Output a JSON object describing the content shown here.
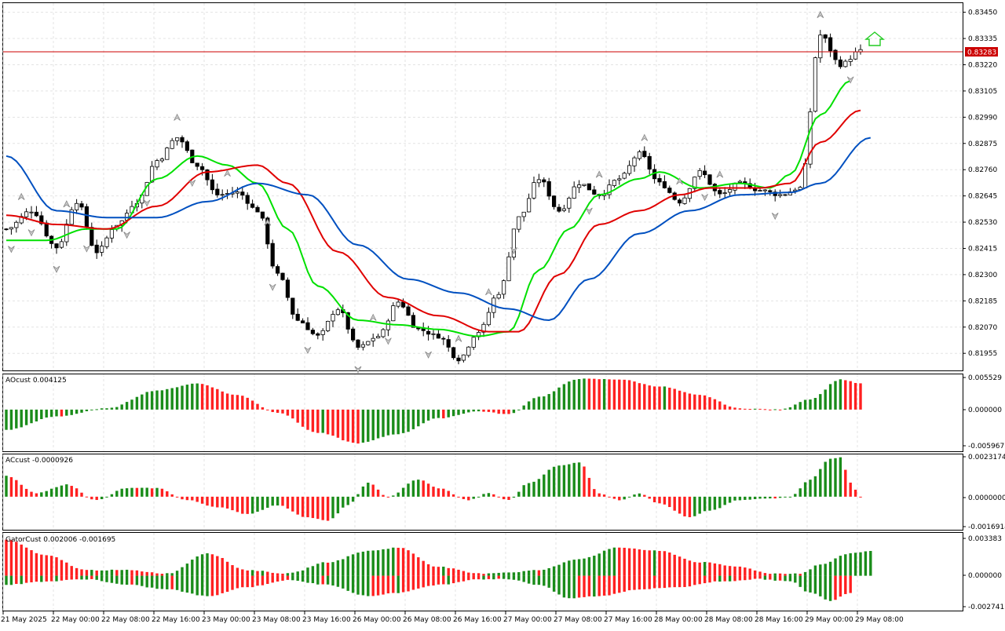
{
  "window": {
    "background": "#ffffff",
    "grid_color": "#e3e3e3",
    "border_color": "#000000"
  },
  "main_chart": {
    "type": "candlestick",
    "price_axis_labels": [
      "0.83450",
      "0.83335",
      "0.83220",
      "0.83105",
      "0.82990",
      "0.82875",
      "0.82760",
      "0.82645",
      "0.82530",
      "0.82415",
      "0.82300",
      "0.82185",
      "0.82070",
      "0.81955"
    ],
    "current_price": "0.83283",
    "current_price_line_color": "#cc0000",
    "y_range": [
      0.8188,
      0.8349
    ],
    "indicators": [
      {
        "name": "green line",
        "color": "#00e000"
      },
      {
        "name": "red line",
        "color": "#e00000"
      },
      {
        "name": "blue line",
        "color": "#0050c0"
      }
    ],
    "signal_arrow": {
      "direction": "up",
      "color": "#22cc22"
    }
  },
  "ao_panel": {
    "title": "AOcust 0.004125",
    "axis_labels": [
      "0.005529",
      "0.000000",
      "-0.005967"
    ],
    "up_color": "#1a8c1a",
    "down_color": "#ff2020"
  },
  "ac_panel": {
    "title": "ACcust -0.0000926",
    "axis_labels": [
      "0.0023174",
      "0.0000000",
      "-0.0016914"
    ]
  },
  "gator_panel": {
    "title": "GatorCust 0.002006 -0.001695",
    "axis_labels": [
      "0.003383",
      "0.000000",
      "-0.002741"
    ]
  },
  "time_axis": {
    "labels": [
      "21 May 2025",
      "22 May 00:00",
      "22 May 08:00",
      "22 May 16:00",
      "23 May 00:00",
      "23 May 08:00",
      "23 May 16:00",
      "26 May 00:00",
      "26 May 08:00",
      "26 May 16:00",
      "27 May 00:00",
      "27 May 08:00",
      "27 May 16:00",
      "28 May 00:00",
      "28 May 08:00",
      "28 May 16:00",
      "29 May 00:00",
      "29 May 08:00"
    ]
  },
  "chart_data": {
    "type": "candlestick",
    "price_range": [
      0.8188,
      0.8349
    ],
    "close_anchors": [
      [
        0,
        0.825
      ],
      [
        5,
        0.8258
      ],
      [
        10,
        0.8242
      ],
      [
        14,
        0.8262
      ],
      [
        18,
        0.824
      ],
      [
        22,
        0.8252
      ],
      [
        26,
        0.8262
      ],
      [
        30,
        0.828
      ],
      [
        34,
        0.829
      ],
      [
        38,
        0.8278
      ],
      [
        42,
        0.8265
      ],
      [
        46,
        0.8266
      ],
      [
        50,
        0.8258
      ],
      [
        54,
        0.823
      ],
      [
        58,
        0.821
      ],
      [
        62,
        0.8203
      ],
      [
        66,
        0.8215
      ],
      [
        70,
        0.8198
      ],
      [
        74,
        0.8203
      ],
      [
        78,
        0.8218
      ],
      [
        82,
        0.8206
      ],
      [
        86,
        0.8203
      ],
      [
        90,
        0.8193
      ],
      [
        94,
        0.8205
      ],
      [
        98,
        0.8222
      ],
      [
        102,
        0.8255
      ],
      [
        106,
        0.8272
      ],
      [
        110,
        0.8258
      ],
      [
        114,
        0.827
      ],
      [
        118,
        0.8265
      ],
      [
        122,
        0.8272
      ],
      [
        126,
        0.8283
      ],
      [
        130,
        0.827
      ],
      [
        134,
        0.8262
      ],
      [
        138,
        0.8275
      ],
      [
        142,
        0.8265
      ],
      [
        146,
        0.827
      ],
      [
        150,
        0.8267
      ],
      [
        154,
        0.8265
      ],
      [
        158,
        0.8268
      ],
      [
        162,
        0.8335
      ],
      [
        166,
        0.8322
      ],
      [
        170,
        0.8328
      ]
    ],
    "green_line": [
      [
        0,
        0.8245
      ],
      [
        8,
        0.8245
      ],
      [
        16,
        0.825
      ],
      [
        22,
        0.825
      ],
      [
        30,
        0.8272
      ],
      [
        38,
        0.8282
      ],
      [
        44,
        0.8278
      ],
      [
        50,
        0.827
      ],
      [
        56,
        0.825
      ],
      [
        62,
        0.8225
      ],
      [
        70,
        0.821
      ],
      [
        78,
        0.8208
      ],
      [
        86,
        0.8206
      ],
      [
        94,
        0.8203
      ],
      [
        100,
        0.8205
      ],
      [
        106,
        0.8232
      ],
      [
        112,
        0.825
      ],
      [
        118,
        0.8265
      ],
      [
        126,
        0.8272
      ],
      [
        130,
        0.8275
      ],
      [
        138,
        0.8268
      ],
      [
        146,
        0.827
      ],
      [
        152,
        0.8268
      ],
      [
        156,
        0.8274
      ],
      [
        162,
        0.83
      ],
      [
        168,
        0.8315
      ]
    ],
    "red_line": [
      [
        0,
        0.8256
      ],
      [
        10,
        0.8252
      ],
      [
        20,
        0.825
      ],
      [
        30,
        0.826
      ],
      [
        40,
        0.8275
      ],
      [
        50,
        0.8278
      ],
      [
        56,
        0.827
      ],
      [
        66,
        0.824
      ],
      [
        76,
        0.822
      ],
      [
        86,
        0.8212
      ],
      [
        96,
        0.8205
      ],
      [
        102,
        0.8205
      ],
      [
        110,
        0.823
      ],
      [
        118,
        0.8252
      ],
      [
        126,
        0.8258
      ],
      [
        134,
        0.8265
      ],
      [
        140,
        0.8268
      ],
      [
        150,
        0.8268
      ],
      [
        156,
        0.827
      ],
      [
        162,
        0.8288
      ],
      [
        170,
        0.8302
      ]
    ],
    "blue_line": [
      [
        0,
        0.8282
      ],
      [
        10,
        0.8258
      ],
      [
        20,
        0.8255
      ],
      [
        30,
        0.8255
      ],
      [
        40,
        0.8262
      ],
      [
        50,
        0.827
      ],
      [
        60,
        0.8265
      ],
      [
        70,
        0.8243
      ],
      [
        80,
        0.8228
      ],
      [
        90,
        0.8222
      ],
      [
        100,
        0.8215
      ],
      [
        108,
        0.821
      ],
      [
        116,
        0.8228
      ],
      [
        126,
        0.8248
      ],
      [
        136,
        0.8258
      ],
      [
        146,
        0.8265
      ],
      [
        156,
        0.8266
      ],
      [
        162,
        0.827
      ],
      [
        172,
        0.829
      ]
    ],
    "ao_anchors": [
      [
        0,
        -0.0035
      ],
      [
        10,
        -0.0012
      ],
      [
        20,
        0.0002
      ],
      [
        30,
        0.0033
      ],
      [
        38,
        0.0045
      ],
      [
        46,
        0.0025
      ],
      [
        54,
        -0.0005
      ],
      [
        62,
        -0.004
      ],
      [
        70,
        -0.0058
      ],
      [
        78,
        -0.0042
      ],
      [
        86,
        -0.0015
      ],
      [
        94,
        -0.0003
      ],
      [
        100,
        -0.0008
      ],
      [
        106,
        0.0022
      ],
      [
        114,
        0.0053
      ],
      [
        122,
        0.0052
      ],
      [
        130,
        0.004
      ],
      [
        138,
        0.0025
      ],
      [
        146,
        0.0002
      ],
      [
        154,
        0.0
      ],
      [
        160,
        0.0018
      ],
      [
        166,
        0.0052
      ],
      [
        170,
        0.0045
      ]
    ],
    "ac_anchors": [
      [
        0,
        0.0012
      ],
      [
        6,
        0.0002
      ],
      [
        12,
        0.0007
      ],
      [
        18,
        -0.0002
      ],
      [
        24,
        0.0005
      ],
      [
        30,
        0.0005
      ],
      [
        36,
        -0.0002
      ],
      [
        42,
        -0.0006
      ],
      [
        48,
        -0.001
      ],
      [
        54,
        -0.0005
      ],
      [
        60,
        -0.0012
      ],
      [
        64,
        -0.0014
      ],
      [
        68,
        -0.0005
      ],
      [
        72,
        0.0008
      ],
      [
        76,
        0.0
      ],
      [
        82,
        0.001
      ],
      [
        86,
        0.0005
      ],
      [
        92,
        -0.0002
      ],
      [
        96,
        0.0002
      ],
      [
        100,
        -0.0002
      ],
      [
        104,
        0.0008
      ],
      [
        110,
        0.0018
      ],
      [
        114,
        0.002
      ],
      [
        118,
        0.0002
      ],
      [
        122,
        -0.0002
      ],
      [
        126,
        0.0002
      ],
      [
        130,
        -0.0004
      ],
      [
        136,
        -0.0012
      ],
      [
        140,
        -0.0008
      ],
      [
        146,
        -0.0002
      ],
      [
        152,
        -0.0001
      ],
      [
        156,
        0.0
      ],
      [
        160,
        0.001
      ],
      [
        164,
        0.0022
      ],
      [
        166,
        0.0023
      ],
      [
        168,
        0.0008
      ],
      [
        170,
        0.0
      ]
    ],
    "gator_upper": [
      [
        0,
        0.0032
      ],
      [
        8,
        0.0018
      ],
      [
        16,
        0.0005
      ],
      [
        24,
        0.0005
      ],
      [
        32,
        0.0002
      ],
      [
        40,
        0.002
      ],
      [
        48,
        0.0005
      ],
      [
        56,
        0.0002
      ],
      [
        64,
        0.0012
      ],
      [
        72,
        0.0022
      ],
      [
        78,
        0.0025
      ],
      [
        86,
        0.0008
      ],
      [
        94,
        0.0002
      ],
      [
        100,
        0.0003
      ],
      [
        106,
        0.0005
      ],
      [
        114,
        0.0015
      ],
      [
        122,
        0.0025
      ],
      [
        130,
        0.0022
      ],
      [
        138,
        0.0012
      ],
      [
        146,
        0.0008
      ],
      [
        152,
        0.0002
      ],
      [
        158,
        0.0002
      ],
      [
        162,
        0.001
      ],
      [
        168,
        0.002
      ],
      [
        172,
        0.0022
      ]
    ],
    "gator_lower": [
      [
        0,
        -0.0008
      ],
      [
        8,
        -0.0005
      ],
      [
        16,
        -0.0003
      ],
      [
        24,
        -0.0008
      ],
      [
        32,
        -0.0012
      ],
      [
        40,
        -0.0018
      ],
      [
        48,
        -0.001
      ],
      [
        56,
        -0.0004
      ],
      [
        64,
        -0.0008
      ],
      [
        72,
        -0.0018
      ],
      [
        78,
        -0.0015
      ],
      [
        86,
        -0.0008
      ],
      [
        94,
        -0.0003
      ],
      [
        100,
        -0.0003
      ],
      [
        106,
        -0.0008
      ],
      [
        112,
        -0.002
      ],
      [
        118,
        -0.0018
      ],
      [
        126,
        -0.0012
      ],
      [
        134,
        -0.001
      ],
      [
        142,
        -0.0005
      ],
      [
        150,
        -0.0003
      ],
      [
        156,
        -0.0005
      ],
      [
        160,
        -0.0015
      ],
      [
        164,
        -0.0022
      ],
      [
        168,
        -0.0015
      ]
    ]
  }
}
